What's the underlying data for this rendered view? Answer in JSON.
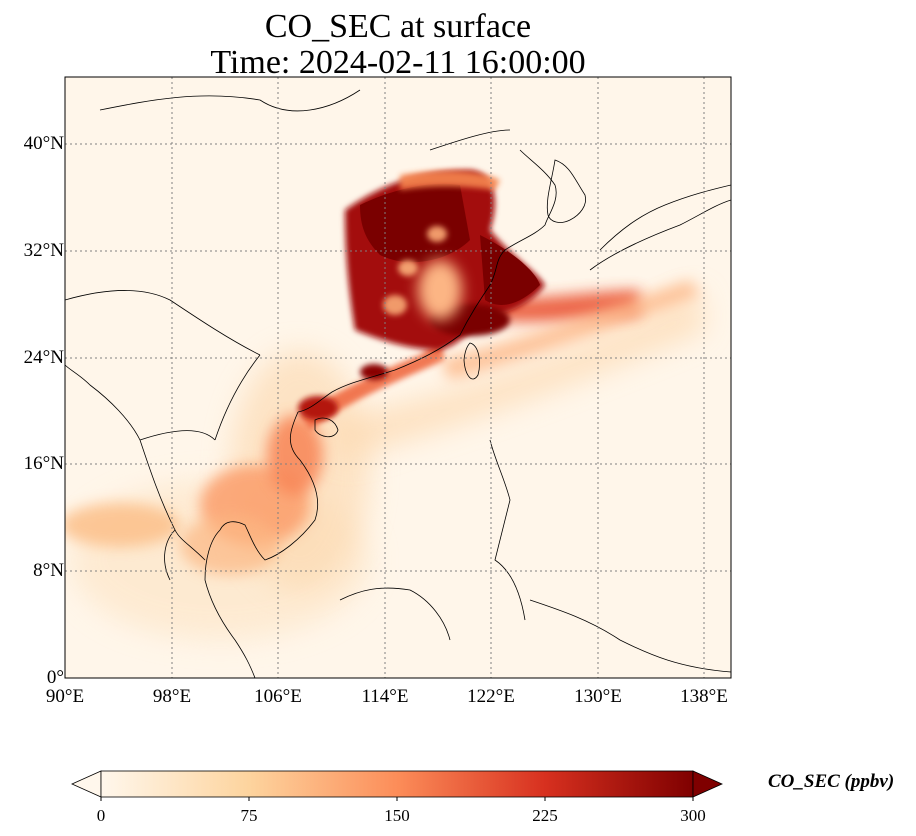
{
  "title_line1": "CO_SEC at surface",
  "title_line2": "Time: 2024-02-11 16:00:00",
  "colorbar": {
    "label": "CO_SEC (ppbv)",
    "ticks": [
      "0",
      "75",
      "150",
      "225",
      "300"
    ],
    "vmin": 0,
    "vmax": 300,
    "colormap": "OrRd",
    "colors": [
      "#fff7ec",
      "#fdd49e",
      "#fc8d59",
      "#d7301f",
      "#7f0000"
    ],
    "extend": "both"
  },
  "map": {
    "lon_range": [
      90,
      140
    ],
    "lat_range": [
      0,
      45
    ],
    "gridlines": "dotted",
    "x_ticks": [
      "90°E",
      "98°E",
      "106°E",
      "114°E",
      "122°E",
      "130°E",
      "138°E"
    ],
    "y_ticks": [
      "0°",
      "8°N",
      "16°N",
      "24°N",
      "32°N",
      "40°N"
    ],
    "x_tick_values": [
      90,
      98,
      106,
      114,
      122,
      130,
      138
    ],
    "y_tick_values": [
      0,
      8,
      16,
      24,
      32,
      40
    ]
  }
}
